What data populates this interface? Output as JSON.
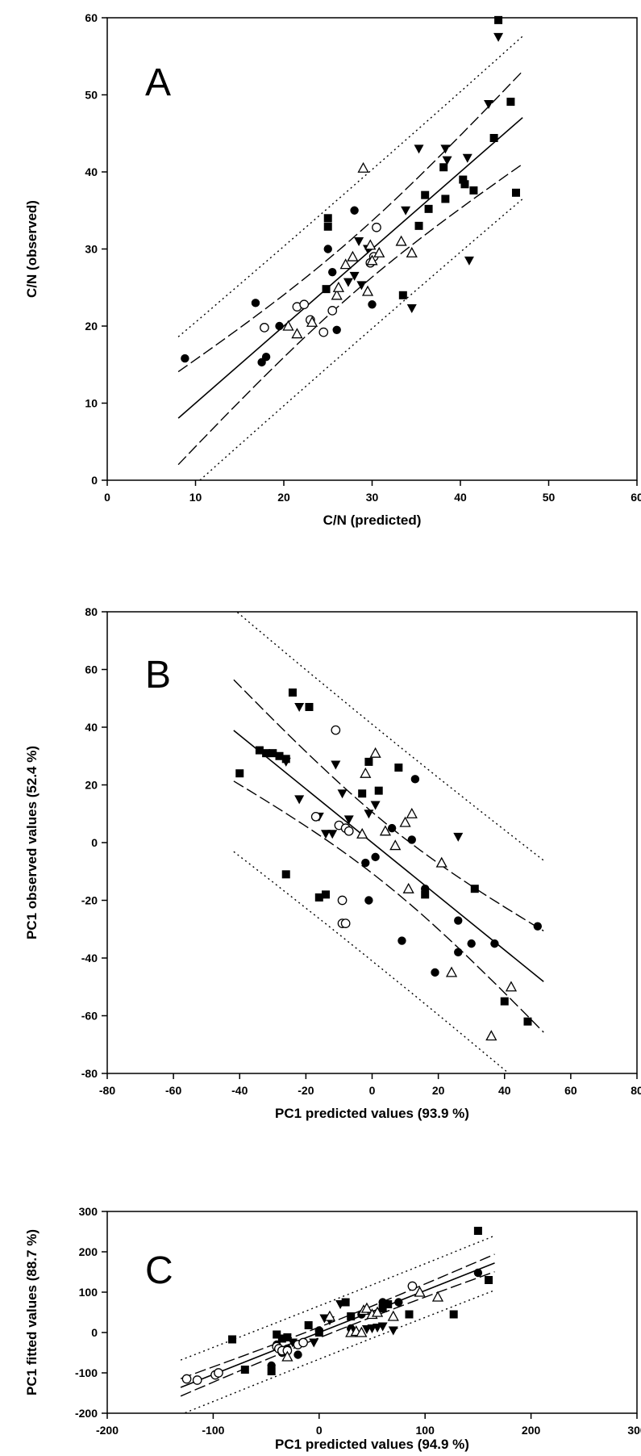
{
  "chart_data": [
    {
      "type": "scatter",
      "panel_label": "A",
      "xlabel": "C/N (predicted)",
      "ylabel": "C/N (observed)",
      "xlim": [
        0,
        60
      ],
      "ylim": [
        0,
        60
      ],
      "xticks": [
        0,
        10,
        20,
        30,
        40,
        50,
        60
      ],
      "yticks": [
        0,
        10,
        20,
        30,
        40,
        50,
        60
      ],
      "grid": false,
      "fit": {
        "slope": 1.0,
        "intercept": 0,
        "ci_half_width": 3.6,
        "pi_half_width": 10.3
      },
      "series": [
        {
          "marker": "filled-square",
          "points": [
            [
              44.3,
              59.7
            ],
            [
              45.7,
              49.1
            ],
            [
              43.8,
              44.4
            ],
            [
              38.1,
              40.6
            ],
            [
              40.3,
              39.0
            ],
            [
              36.0,
              37.0
            ],
            [
              38.3,
              36.5
            ],
            [
              36.4,
              35.2
            ],
            [
              40.5,
              38.4
            ],
            [
              41.5,
              37.6
            ],
            [
              46.3,
              37.3
            ],
            [
              35.3,
              33.0
            ],
            [
              25.0,
              34.0
            ],
            [
              25.0,
              32.9
            ],
            [
              33.5,
              24.0
            ],
            [
              24.8,
              24.8
            ]
          ]
        },
        {
          "marker": "filled-triangle-down",
          "points": [
            [
              44.3,
              57.5
            ],
            [
              43.2,
              48.8
            ],
            [
              35.3,
              43.0
            ],
            [
              38.3,
              43.0
            ],
            [
              38.5,
              41.5
            ],
            [
              40.8,
              41.8
            ],
            [
              33.8,
              35.0
            ],
            [
              28.5,
              31.0
            ],
            [
              29.5,
              30.0
            ],
            [
              28.0,
              26.5
            ],
            [
              27.3,
              25.7
            ],
            [
              28.8,
              25.3
            ],
            [
              41.0,
              28.5
            ],
            [
              34.5,
              22.3
            ]
          ]
        },
        {
          "marker": "filled-circle",
          "points": [
            [
              8.8,
              15.8
            ],
            [
              16.8,
              23.0
            ],
            [
              17.5,
              15.3
            ],
            [
              18.0,
              16.0
            ],
            [
              19.5,
              20.0
            ],
            [
              25.0,
              30.0
            ],
            [
              25.5,
              27.0
            ],
            [
              26.0,
              19.5
            ],
            [
              28.0,
              35.0
            ],
            [
              30.0,
              22.8
            ]
          ]
        },
        {
          "marker": "open-circle",
          "points": [
            [
              17.8,
              19.8
            ],
            [
              21.5,
              22.5
            ],
            [
              22.3,
              22.8
            ],
            [
              23.0,
              20.8
            ],
            [
              24.5,
              19.2
            ],
            [
              25.5,
              22.0
            ],
            [
              30.5,
              32.8
            ],
            [
              30.2,
              29.0
            ],
            [
              29.8,
              28.2
            ]
          ]
        },
        {
          "marker": "open-triangle-up",
          "points": [
            [
              29.0,
              40.5
            ],
            [
              20.5,
              20.0
            ],
            [
              21.5,
              19.0
            ],
            [
              23.2,
              20.5
            ],
            [
              26.0,
              24.0
            ],
            [
              26.2,
              25.0
            ],
            [
              27.0,
              28.0
            ],
            [
              27.8,
              29.0
            ],
            [
              29.5,
              24.5
            ],
            [
              30.0,
              28.5
            ],
            [
              30.8,
              29.5
            ],
            [
              33.3,
              31.0
            ],
            [
              34.5,
              29.5
            ],
            [
              29.8,
              30.5
            ]
          ]
        }
      ]
    },
    {
      "type": "scatter",
      "panel_label": "B",
      "xlabel": "PC1 predicted values (93.9 %)",
      "ylabel": "PC1 observed values (52.4 %)",
      "xlim": [
        -80,
        80
      ],
      "ylim": [
        -80,
        80
      ],
      "xticks": [
        -80,
        -60,
        -40,
        -20,
        0,
        20,
        40,
        60,
        80
      ],
      "yticks": [
        -80,
        -60,
        -40,
        -20,
        0,
        20,
        40,
        60,
        80
      ],
      "grid": false,
      "fit": {
        "slope": -0.93,
        "intercept": 0,
        "ci_half_width": 10.5,
        "pi_half_width": 41.0
      },
      "series": [
        {
          "marker": "filled-square",
          "points": [
            [
              -40,
              24
            ],
            [
              -34,
              32
            ],
            [
              -32,
              31
            ],
            [
              -30,
              31
            ],
            [
              -28,
              30
            ],
            [
              -26,
              29
            ],
            [
              -24,
              52
            ],
            [
              -19,
              47
            ],
            [
              -26,
              -11
            ],
            [
              -16,
              -19
            ],
            [
              -14,
              -18
            ],
            [
              -3,
              17
            ],
            [
              -1,
              28
            ],
            [
              2,
              18
            ],
            [
              8,
              26
            ],
            [
              16,
              -18
            ],
            [
              31,
              -16
            ],
            [
              40,
              -55
            ],
            [
              47,
              -62
            ]
          ]
        },
        {
          "marker": "filled-triangle-down",
          "points": [
            [
              -22,
              47
            ],
            [
              -26,
              28
            ],
            [
              -22,
              15
            ],
            [
              -16,
              9
            ],
            [
              -14,
              3
            ],
            [
              -12,
              3
            ],
            [
              -11,
              27
            ],
            [
              -9,
              17
            ],
            [
              -7,
              8
            ],
            [
              1,
              13
            ],
            [
              -1,
              10
            ],
            [
              26,
              2
            ]
          ]
        },
        {
          "marker": "filled-circle",
          "points": [
            [
              -2,
              -7
            ],
            [
              1,
              -5
            ],
            [
              -1,
              -20
            ],
            [
              9,
              -34
            ],
            [
              12,
              1
            ],
            [
              13,
              22
            ],
            [
              16,
              -16
            ],
            [
              19,
              -45
            ],
            [
              26,
              -27
            ],
            [
              26,
              -38
            ],
            [
              30,
              -35
            ],
            [
              37,
              -35
            ],
            [
              50,
              -29
            ],
            [
              6,
              5
            ]
          ]
        },
        {
          "marker": "open-circle",
          "points": [
            [
              -11,
              39
            ],
            [
              -17,
              9
            ],
            [
              -10,
              6
            ],
            [
              -8,
              5
            ],
            [
              -7,
              4
            ],
            [
              -9,
              -28
            ],
            [
              -8,
              -28
            ],
            [
              -9,
              -20
            ]
          ]
        },
        {
          "marker": "open-triangle-up",
          "points": [
            [
              -2,
              24
            ],
            [
              1,
              31
            ],
            [
              -3,
              3
            ],
            [
              4,
              4
            ],
            [
              7,
              -1
            ],
            [
              10,
              7
            ],
            [
              12,
              10
            ],
            [
              11,
              -16
            ],
            [
              21,
              -7
            ],
            [
              24,
              -45
            ],
            [
              36,
              -67
            ],
            [
              42,
              -50
            ]
          ]
        }
      ]
    },
    {
      "type": "scatter",
      "panel_label": "C",
      "xlabel": "PC1 predicted values (94.9 %)",
      "ylabel": "PC1 fitted values (88.7 %)",
      "xlim": [
        -200,
        300
      ],
      "ylim": [
        -200,
        300
      ],
      "xticks": [
        -200,
        -100,
        0,
        100,
        200,
        300
      ],
      "yticks": [
        -200,
        -100,
        0,
        100,
        200,
        300
      ],
      "grid": false,
      "fit": {
        "slope": 1.04,
        "intercept": 0,
        "ci_half_width": 13.0,
        "pi_half_width": 66.0
      },
      "series": [
        {
          "marker": "filled-square",
          "points": [
            [
              150,
              252
            ],
            [
              160,
              130
            ],
            [
              85,
              45
            ],
            [
              127,
              45
            ],
            [
              -82,
              -17
            ],
            [
              -70,
              -92
            ],
            [
              -45,
              -96
            ],
            [
              -40,
              -5
            ],
            [
              -35,
              -15
            ],
            [
              -30,
              -12
            ],
            [
              -10,
              18
            ],
            [
              0,
              0
            ],
            [
              25,
              75
            ],
            [
              30,
              40
            ],
            [
              65,
              70
            ],
            [
              60,
              60
            ]
          ]
        },
        {
          "marker": "filled-triangle-down",
          "points": [
            [
              20,
              70
            ],
            [
              5,
              35
            ],
            [
              10,
              30
            ],
            [
              -5,
              -25
            ],
            [
              -25,
              -25
            ],
            [
              45,
              8
            ],
            [
              50,
              10
            ],
            [
              55,
              12
            ],
            [
              60,
              15
            ],
            [
              70,
              5
            ]
          ]
        },
        {
          "marker": "filled-circle",
          "points": [
            [
              150,
              148
            ],
            [
              -45,
              -82
            ],
            [
              -40,
              -30
            ],
            [
              -35,
              -50
            ],
            [
              -30,
              -40
            ],
            [
              -20,
              -55
            ],
            [
              0,
              5
            ],
            [
              30,
              10
            ],
            [
              40,
              45
            ],
            [
              60,
              75
            ],
            [
              75,
              75
            ]
          ]
        },
        {
          "marker": "open-circle",
          "points": [
            [
              -125,
              -115
            ],
            [
              -115,
              -118
            ],
            [
              -98,
              -105
            ],
            [
              -95,
              -100
            ],
            [
              -40,
              -35
            ],
            [
              -38,
              -40
            ],
            [
              -35,
              -45
            ],
            [
              -30,
              -45
            ],
            [
              -20,
              -30
            ],
            [
              -15,
              -25
            ],
            [
              88,
              115
            ]
          ]
        },
        {
          "marker": "open-triangle-up",
          "points": [
            [
              30,
              0
            ],
            [
              35,
              3
            ],
            [
              40,
              0
            ],
            [
              42,
              55
            ],
            [
              45,
              60
            ],
            [
              50,
              45
            ],
            [
              55,
              50
            ],
            [
              10,
              40
            ],
            [
              70,
              40
            ],
            [
              95,
              100
            ],
            [
              112,
              88
            ],
            [
              -30,
              -60
            ]
          ]
        }
      ]
    }
  ]
}
